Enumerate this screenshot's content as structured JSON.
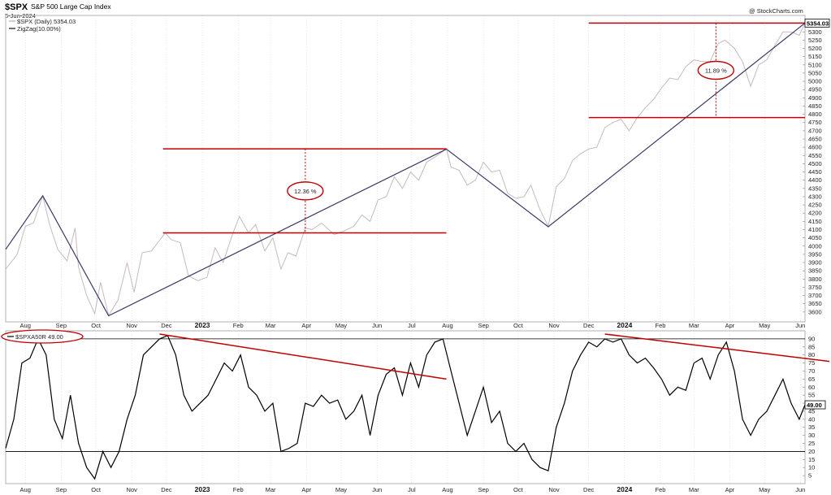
{
  "header": {
    "symbol": "$SPX",
    "name": "S&P 500 Large Cap Index",
    "date": "5-Jun-2024",
    "credit": "@ StockCharts.com",
    "legend_price": "$SPX (Daily) 5354.03",
    "legend_zigzag": "ZigZag(10.00%)",
    "indicator_label": "$SPXA50R 49.00"
  },
  "colors": {
    "price_line": "#c9b8c0",
    "zigzag": "#3a3a66",
    "annotation": "#c00000",
    "indicator_line": "#000000",
    "grid": "#cccccc"
  },
  "chart_data": [
    {
      "type": "line",
      "title": "$SPX S&P 500 Large Cap Index",
      "series_name": "$SPX (Daily)",
      "last_value": "5354.03",
      "y_axis_side": "right",
      "ylim": [
        3540,
        5400
      ],
      "y_ticks": [
        3600,
        3650,
        3700,
        3750,
        3800,
        3850,
        3900,
        3950,
        4000,
        4050,
        4100,
        4150,
        4200,
        4250,
        4300,
        4350,
        4400,
        4450,
        4500,
        4550,
        4600,
        4650,
        4700,
        4750,
        4800,
        4850,
        4900,
        4950,
        5000,
        5050,
        5100,
        5150,
        5200,
        5250,
        5300
      ],
      "x_labels": [
        "Aug",
        "Sep",
        "Oct",
        "Nov",
        "Dec",
        "2023",
        "Feb",
        "Mar",
        "Apr",
        "May",
        "Jun",
        "Jul",
        "Aug",
        "Sep",
        "Oct",
        "Nov",
        "Dec",
        "2024",
        "Feb",
        "Mar",
        "Apr",
        "May",
        "Jun"
      ],
      "bold_x_labels": [
        "2023",
        "2024"
      ],
      "x_range": [
        "2022-07-15",
        "2024-06-05"
      ],
      "price": [
        [
          "2022-07-15",
          3860
        ],
        [
          "2022-07-25",
          3950
        ],
        [
          "2022-08-01",
          4120
        ],
        [
          "2022-08-08",
          4140
        ],
        [
          "2022-08-16",
          4305
        ],
        [
          "2022-08-22",
          4130
        ],
        [
          "2022-08-29",
          3980
        ],
        [
          "2022-09-06",
          3910
        ],
        [
          "2022-09-13",
          4110
        ],
        [
          "2022-09-16",
          3870
        ],
        [
          "2022-09-23",
          3700
        ],
        [
          "2022-09-30",
          3590
        ],
        [
          "2022-10-05",
          3780
        ],
        [
          "2022-10-12",
          3580
        ],
        [
          "2022-10-20",
          3670
        ],
        [
          "2022-10-28",
          3900
        ],
        [
          "2022-11-03",
          3720
        ],
        [
          "2022-11-10",
          3960
        ],
        [
          "2022-11-18",
          3970
        ],
        [
          "2022-11-30",
          4080
        ],
        [
          "2022-12-05",
          4040
        ],
        [
          "2022-12-13",
          4020
        ],
        [
          "2022-12-20",
          3820
        ],
        [
          "2022-12-28",
          3790
        ],
        [
          "2023-01-05",
          3810
        ],
        [
          "2023-01-12",
          3990
        ],
        [
          "2023-01-19",
          3900
        ],
        [
          "2023-01-27",
          4070
        ],
        [
          "2023-02-02",
          4180
        ],
        [
          "2023-02-10",
          4080
        ],
        [
          "2023-02-16",
          4130
        ],
        [
          "2023-02-24",
          3970
        ],
        [
          "2023-03-03",
          4050
        ],
        [
          "2023-03-10",
          3860
        ],
        [
          "2023-03-16",
          3960
        ],
        [
          "2023-03-23",
          3940
        ],
        [
          "2023-03-31",
          4110
        ],
        [
          "2023-04-06",
          4100
        ],
        [
          "2023-04-14",
          4140
        ],
        [
          "2023-04-25",
          4070
        ],
        [
          "2023-05-03",
          4090
        ],
        [
          "2023-05-12",
          4120
        ],
        [
          "2023-05-19",
          4190
        ],
        [
          "2023-05-26",
          4150
        ],
        [
          "2023-06-02",
          4280
        ],
        [
          "2023-06-09",
          4300
        ],
        [
          "2023-06-16",
          4420
        ],
        [
          "2023-06-23",
          4350
        ],
        [
          "2023-06-30",
          4450
        ],
        [
          "2023-07-07",
          4400
        ],
        [
          "2023-07-14",
          4510
        ],
        [
          "2023-07-21",
          4540
        ],
        [
          "2023-07-31",
          4590
        ],
        [
          "2023-08-04",
          4480
        ],
        [
          "2023-08-11",
          4460
        ],
        [
          "2023-08-18",
          4370
        ],
        [
          "2023-08-25",
          4400
        ],
        [
          "2023-09-01",
          4510
        ],
        [
          "2023-09-08",
          4450
        ],
        [
          "2023-09-15",
          4460
        ],
        [
          "2023-09-22",
          4320
        ],
        [
          "2023-09-29",
          4290
        ],
        [
          "2023-10-06",
          4300
        ],
        [
          "2023-10-12",
          4370
        ],
        [
          "2023-10-20",
          4220
        ],
        [
          "2023-10-27",
          4120
        ],
        [
          "2023-11-03",
          4360
        ],
        [
          "2023-11-10",
          4410
        ],
        [
          "2023-11-17",
          4520
        ],
        [
          "2023-11-24",
          4560
        ],
        [
          "2023-12-01",
          4590
        ],
        [
          "2023-12-08",
          4600
        ],
        [
          "2023-12-15",
          4720
        ],
        [
          "2023-12-22",
          4750
        ],
        [
          "2023-12-29",
          4770
        ],
        [
          "2024-01-05",
          4700
        ],
        [
          "2024-01-12",
          4780
        ],
        [
          "2024-01-19",
          4840
        ],
        [
          "2024-01-26",
          4890
        ],
        [
          "2024-02-02",
          4960
        ],
        [
          "2024-02-09",
          5020
        ],
        [
          "2024-02-16",
          5010
        ],
        [
          "2024-02-23",
          5090
        ],
        [
          "2024-03-01",
          5130
        ],
        [
          "2024-03-08",
          5120
        ],
        [
          "2024-03-15",
          5120
        ],
        [
          "2024-03-22",
          5230
        ],
        [
          "2024-03-28",
          5250
        ],
        [
          "2024-04-05",
          5200
        ],
        [
          "2024-04-12",
          5120
        ],
        [
          "2024-04-19",
          4970
        ],
        [
          "2024-04-26",
          5100
        ],
        [
          "2024-05-03",
          5130
        ],
        [
          "2024-05-10",
          5220
        ],
        [
          "2024-05-17",
          5300
        ],
        [
          "2024-05-24",
          5300
        ],
        [
          "2024-05-31",
          5280
        ],
        [
          "2024-06-05",
          5354
        ]
      ],
      "zigzag": [
        [
          "2022-07-15",
          3980
        ],
        [
          "2022-08-16",
          4305
        ],
        [
          "2022-10-12",
          3577
        ],
        [
          "2023-07-31",
          4589
        ],
        [
          "2023-10-27",
          4117
        ],
        [
          "2024-06-05",
          5354
        ]
      ],
      "annotations": [
        {
          "label": "12.36 %",
          "y_low": 4080,
          "y_high": 4590,
          "x_from": "2022-11-28",
          "x_to": "2023-07-31",
          "x_mark": "2023-03-31"
        },
        {
          "label": "11.89 %",
          "y_low": 4780,
          "y_high": 5354,
          "x_from": "2023-12-01",
          "x_to": "2024-06-05",
          "x_mark": "2024-03-20"
        }
      ]
    },
    {
      "type": "line",
      "title": "$SPXA50R",
      "series_name": "$SPXA50R",
      "last_value": "49.00",
      "y_axis_side": "right",
      "ylim": [
        0,
        95
      ],
      "y_ticks": [
        5,
        10,
        15,
        20,
        25,
        30,
        35,
        40,
        45,
        50,
        55,
        60,
        65,
        70,
        75,
        80,
        85,
        90
      ],
      "horizontal_lines": [
        20,
        90
      ],
      "x_labels": [
        "Aug",
        "Sep",
        "Oct",
        "Nov",
        "Dec",
        "2023",
        "Feb",
        "Mar",
        "Apr",
        "May",
        "Jun",
        "Jul",
        "Aug",
        "Sep",
        "Oct",
        "Nov",
        "Dec",
        "2024",
        "Feb",
        "Mar",
        "Apr",
        "May",
        "Jun"
      ],
      "bold_x_labels": [
        "2023",
        "2024"
      ],
      "values": [
        [
          "2022-07-15",
          22
        ],
        [
          "2022-07-22",
          40
        ],
        [
          "2022-07-29",
          75
        ],
        [
          "2022-08-05",
          78
        ],
        [
          "2022-08-12",
          90
        ],
        [
          "2022-08-19",
          80
        ],
        [
          "2022-08-26",
          40
        ],
        [
          "2022-09-02",
          28
        ],
        [
          "2022-09-09",
          55
        ],
        [
          "2022-09-16",
          25
        ],
        [
          "2022-09-23",
          10
        ],
        [
          "2022-09-30",
          3
        ],
        [
          "2022-10-07",
          20
        ],
        [
          "2022-10-14",
          10
        ],
        [
          "2022-10-21",
          20
        ],
        [
          "2022-10-28",
          40
        ],
        [
          "2022-11-04",
          55
        ],
        [
          "2022-11-11",
          80
        ],
        [
          "2022-11-18",
          85
        ],
        [
          "2022-11-25",
          90
        ],
        [
          "2022-12-02",
          92
        ],
        [
          "2022-12-09",
          80
        ],
        [
          "2022-12-16",
          55
        ],
        [
          "2022-12-23",
          45
        ],
        [
          "2022-12-30",
          50
        ],
        [
          "2023-01-06",
          55
        ],
        [
          "2023-01-13",
          65
        ],
        [
          "2023-01-20",
          75
        ],
        [
          "2023-01-27",
          70
        ],
        [
          "2023-02-03",
          80
        ],
        [
          "2023-02-10",
          60
        ],
        [
          "2023-02-17",
          55
        ],
        [
          "2023-02-24",
          45
        ],
        [
          "2023-03-03",
          50
        ],
        [
          "2023-03-10",
          20
        ],
        [
          "2023-03-17",
          22
        ],
        [
          "2023-03-24",
          25
        ],
        [
          "2023-03-31",
          50
        ],
        [
          "2023-04-07",
          48
        ],
        [
          "2023-04-14",
          55
        ],
        [
          "2023-04-21",
          50
        ],
        [
          "2023-04-28",
          52
        ],
        [
          "2023-05-05",
          40
        ],
        [
          "2023-05-12",
          45
        ],
        [
          "2023-05-19",
          55
        ],
        [
          "2023-05-26",
          30
        ],
        [
          "2023-06-02",
          55
        ],
        [
          "2023-06-09",
          68
        ],
        [
          "2023-06-16",
          72
        ],
        [
          "2023-06-23",
          55
        ],
        [
          "2023-06-30",
          75
        ],
        [
          "2023-07-07",
          60
        ],
        [
          "2023-07-14",
          80
        ],
        [
          "2023-07-21",
          88
        ],
        [
          "2023-07-28",
          90
        ],
        [
          "2023-08-04",
          70
        ],
        [
          "2023-08-11",
          50
        ],
        [
          "2023-08-18",
          30
        ],
        [
          "2023-08-25",
          45
        ],
        [
          "2023-09-01",
          60
        ],
        [
          "2023-09-08",
          38
        ],
        [
          "2023-09-15",
          45
        ],
        [
          "2023-09-22",
          25
        ],
        [
          "2023-09-29",
          20
        ],
        [
          "2023-10-06",
          25
        ],
        [
          "2023-10-13",
          15
        ],
        [
          "2023-10-20",
          10
        ],
        [
          "2023-10-27",
          8
        ],
        [
          "2023-11-03",
          35
        ],
        [
          "2023-11-10",
          50
        ],
        [
          "2023-11-17",
          70
        ],
        [
          "2023-11-24",
          80
        ],
        [
          "2023-12-01",
          88
        ],
        [
          "2023-12-08",
          85
        ],
        [
          "2023-12-15",
          90
        ],
        [
          "2023-12-22",
          88
        ],
        [
          "2023-12-29",
          90
        ],
        [
          "2024-01-05",
          80
        ],
        [
          "2024-01-12",
          75
        ],
        [
          "2024-01-19",
          78
        ],
        [
          "2024-01-26",
          72
        ],
        [
          "2024-02-02",
          65
        ],
        [
          "2024-02-09",
          55
        ],
        [
          "2024-02-16",
          60
        ],
        [
          "2024-02-23",
          58
        ],
        [
          "2024-03-01",
          75
        ],
        [
          "2024-03-08",
          78
        ],
        [
          "2024-03-15",
          65
        ],
        [
          "2024-03-22",
          80
        ],
        [
          "2024-03-29",
          88
        ],
        [
          "2024-04-05",
          70
        ],
        [
          "2024-04-12",
          40
        ],
        [
          "2024-04-19",
          30
        ],
        [
          "2024-04-26",
          40
        ],
        [
          "2024-05-03",
          45
        ],
        [
          "2024-05-10",
          55
        ],
        [
          "2024-05-17",
          65
        ],
        [
          "2024-05-24",
          50
        ],
        [
          "2024-05-31",
          40
        ],
        [
          "2024-06-05",
          49
        ]
      ],
      "trendlines": [
        {
          "from": [
            "2022-11-25",
            93
          ],
          "to": [
            "2023-07-31",
            65
          ]
        },
        {
          "from": [
            "2023-12-15",
            93
          ],
          "to": [
            "2024-06-30",
            76
          ]
        }
      ]
    }
  ]
}
